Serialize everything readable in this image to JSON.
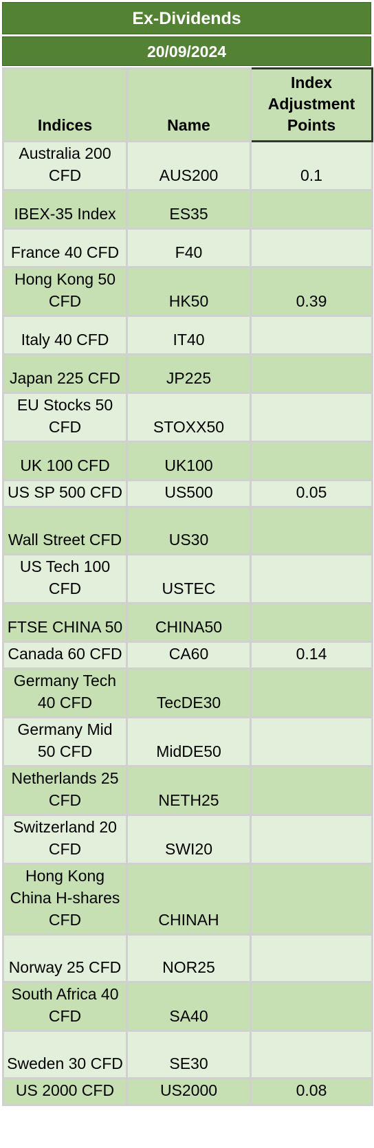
{
  "header": {
    "title": "Ex-Dividends",
    "date": "20/09/2024"
  },
  "columns": {
    "indices": "Indices",
    "name": "Name",
    "adjustment": "Index Adjustment Points"
  },
  "rows": [
    {
      "index": "Australia 200 CFD",
      "name": "AUS200",
      "points": "0.1"
    },
    {
      "index": "IBEX-35 Index",
      "name": "ES35",
      "points": ""
    },
    {
      "index": "France 40 CFD",
      "name": "F40",
      "points": ""
    },
    {
      "index": "Hong Kong 50 CFD",
      "name": "HK50",
      "points": "0.39"
    },
    {
      "index": "Italy 40 CFD",
      "name": "IT40",
      "points": ""
    },
    {
      "index": "Japan 225 CFD",
      "name": "JP225",
      "points": ""
    },
    {
      "index": "EU Stocks 50 CFD",
      "name": "STOXX50",
      "points": ""
    },
    {
      "index": "UK 100 CFD",
      "name": "UK100",
      "points": ""
    },
    {
      "index": "US SP 500 CFD",
      "name": "US500",
      "points": "0.05"
    },
    {
      "index": "Wall Street CFD",
      "name": "US30",
      "points": ""
    },
    {
      "index": "US Tech 100 CFD",
      "name": "USTEC",
      "points": ""
    },
    {
      "index": "FTSE CHINA 50",
      "name": "CHINA50",
      "points": ""
    },
    {
      "index": "Canada 60 CFD",
      "name": "CA60",
      "points": "0.14"
    },
    {
      "index": "Germany Tech 40 CFD",
      "name": "TecDE30",
      "points": ""
    },
    {
      "index": "Germany Mid 50 CFD",
      "name": "MidDE50",
      "points": ""
    },
    {
      "index": "Netherlands 25 CFD",
      "name": "NETH25",
      "points": ""
    },
    {
      "index": "Switzerland 20 CFD",
      "name": "SWI20",
      "points": ""
    },
    {
      "index": "Hong Kong China H-shares CFD",
      "name": "CHINAH",
      "points": ""
    },
    {
      "index": "Norway 25 CFD",
      "name": "NOR25",
      "points": ""
    },
    {
      "index": "South Africa 40 CFD",
      "name": "SA40",
      "points": ""
    },
    {
      "index": "Sweden 30 CFD",
      "name": "SE30",
      "points": ""
    },
    {
      "index": "US 2000 CFD",
      "name": "US2000",
      "points": "0.08"
    }
  ],
  "colors": {
    "header_green": "#548235",
    "row_light": "#e2efda",
    "row_dark": "#c6e0b4",
    "grid": "#d0d0d0"
  }
}
